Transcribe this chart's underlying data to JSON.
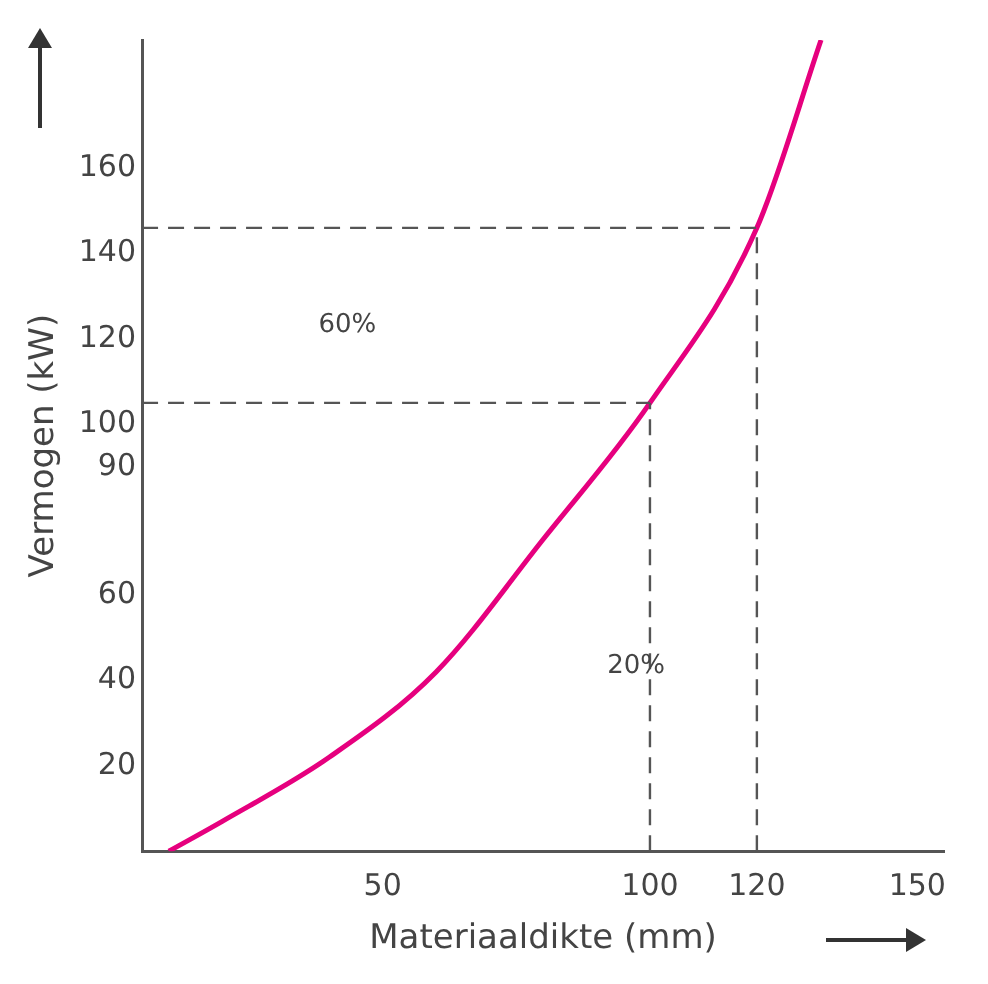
{
  "chart_data": {
    "type": "line",
    "xlabel": "Materiaaldikte (mm)",
    "ylabel": "Vermogen (kW)",
    "x": [
      10,
      20,
      40,
      60,
      80,
      100,
      120,
      132
    ],
    "series": [
      {
        "color": "#e6007e",
        "values": [
          0,
          7,
          22,
          42,
          73,
          105,
          146,
          190
        ]
      }
    ],
    "xlim": [
      5,
      155
    ],
    "xticks": [
      50,
      100,
      120,
      150
    ],
    "ylim": [
      0,
      190
    ],
    "yticks": [
      20,
      40,
      60,
      90,
      100,
      120,
      140,
      160
    ],
    "ref_lines": [
      {
        "axis": "y",
        "value": 105,
        "color": "#555555",
        "line_style": "dashed"
      },
      {
        "axis": "y",
        "value": 146,
        "color": "#555555",
        "line_style": "dashed"
      },
      {
        "axis": "x",
        "value": 100,
        "color": "#555555",
        "line_style": "dashed"
      },
      {
        "axis": "x",
        "value": 120,
        "color": "#555555",
        "line_style": "dashed"
      }
    ],
    "annotations": [
      "60%",
      "20%"
    ],
    "grid": false,
    "legend": false,
    "marker": "none",
    "line_style": "solid"
  }
}
